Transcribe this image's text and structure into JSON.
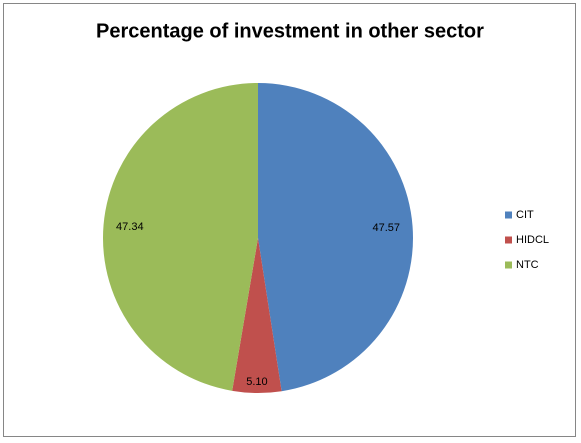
{
  "chart_data": {
    "type": "pie",
    "title": "Percentage of investment in other sector",
    "categories": [
      "CIT",
      "HIDCL",
      "NTC"
    ],
    "values": [
      47.57,
      5.1,
      47.34
    ],
    "value_labels": [
      "47.57",
      "5.10",
      "47.34"
    ],
    "colors": [
      "#4f81bd",
      "#c0504d",
      "#9bbb59"
    ],
    "legend": "right"
  }
}
